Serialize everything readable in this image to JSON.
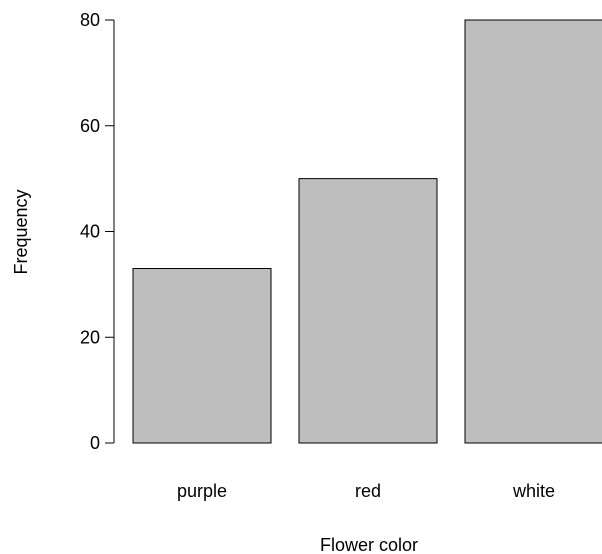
{
  "chart_data": {
    "type": "bar",
    "categories": [
      "purple",
      "red",
      "white"
    ],
    "values": [
      33,
      50,
      80
    ],
    "title": "",
    "xlabel": "Flower color",
    "ylabel": "Frequency",
    "ylim": [
      0,
      80
    ],
    "yticks": [
      0,
      20,
      40,
      60,
      80
    ],
    "bar_color": "#bebebe",
    "grid": false,
    "legend": "none"
  }
}
